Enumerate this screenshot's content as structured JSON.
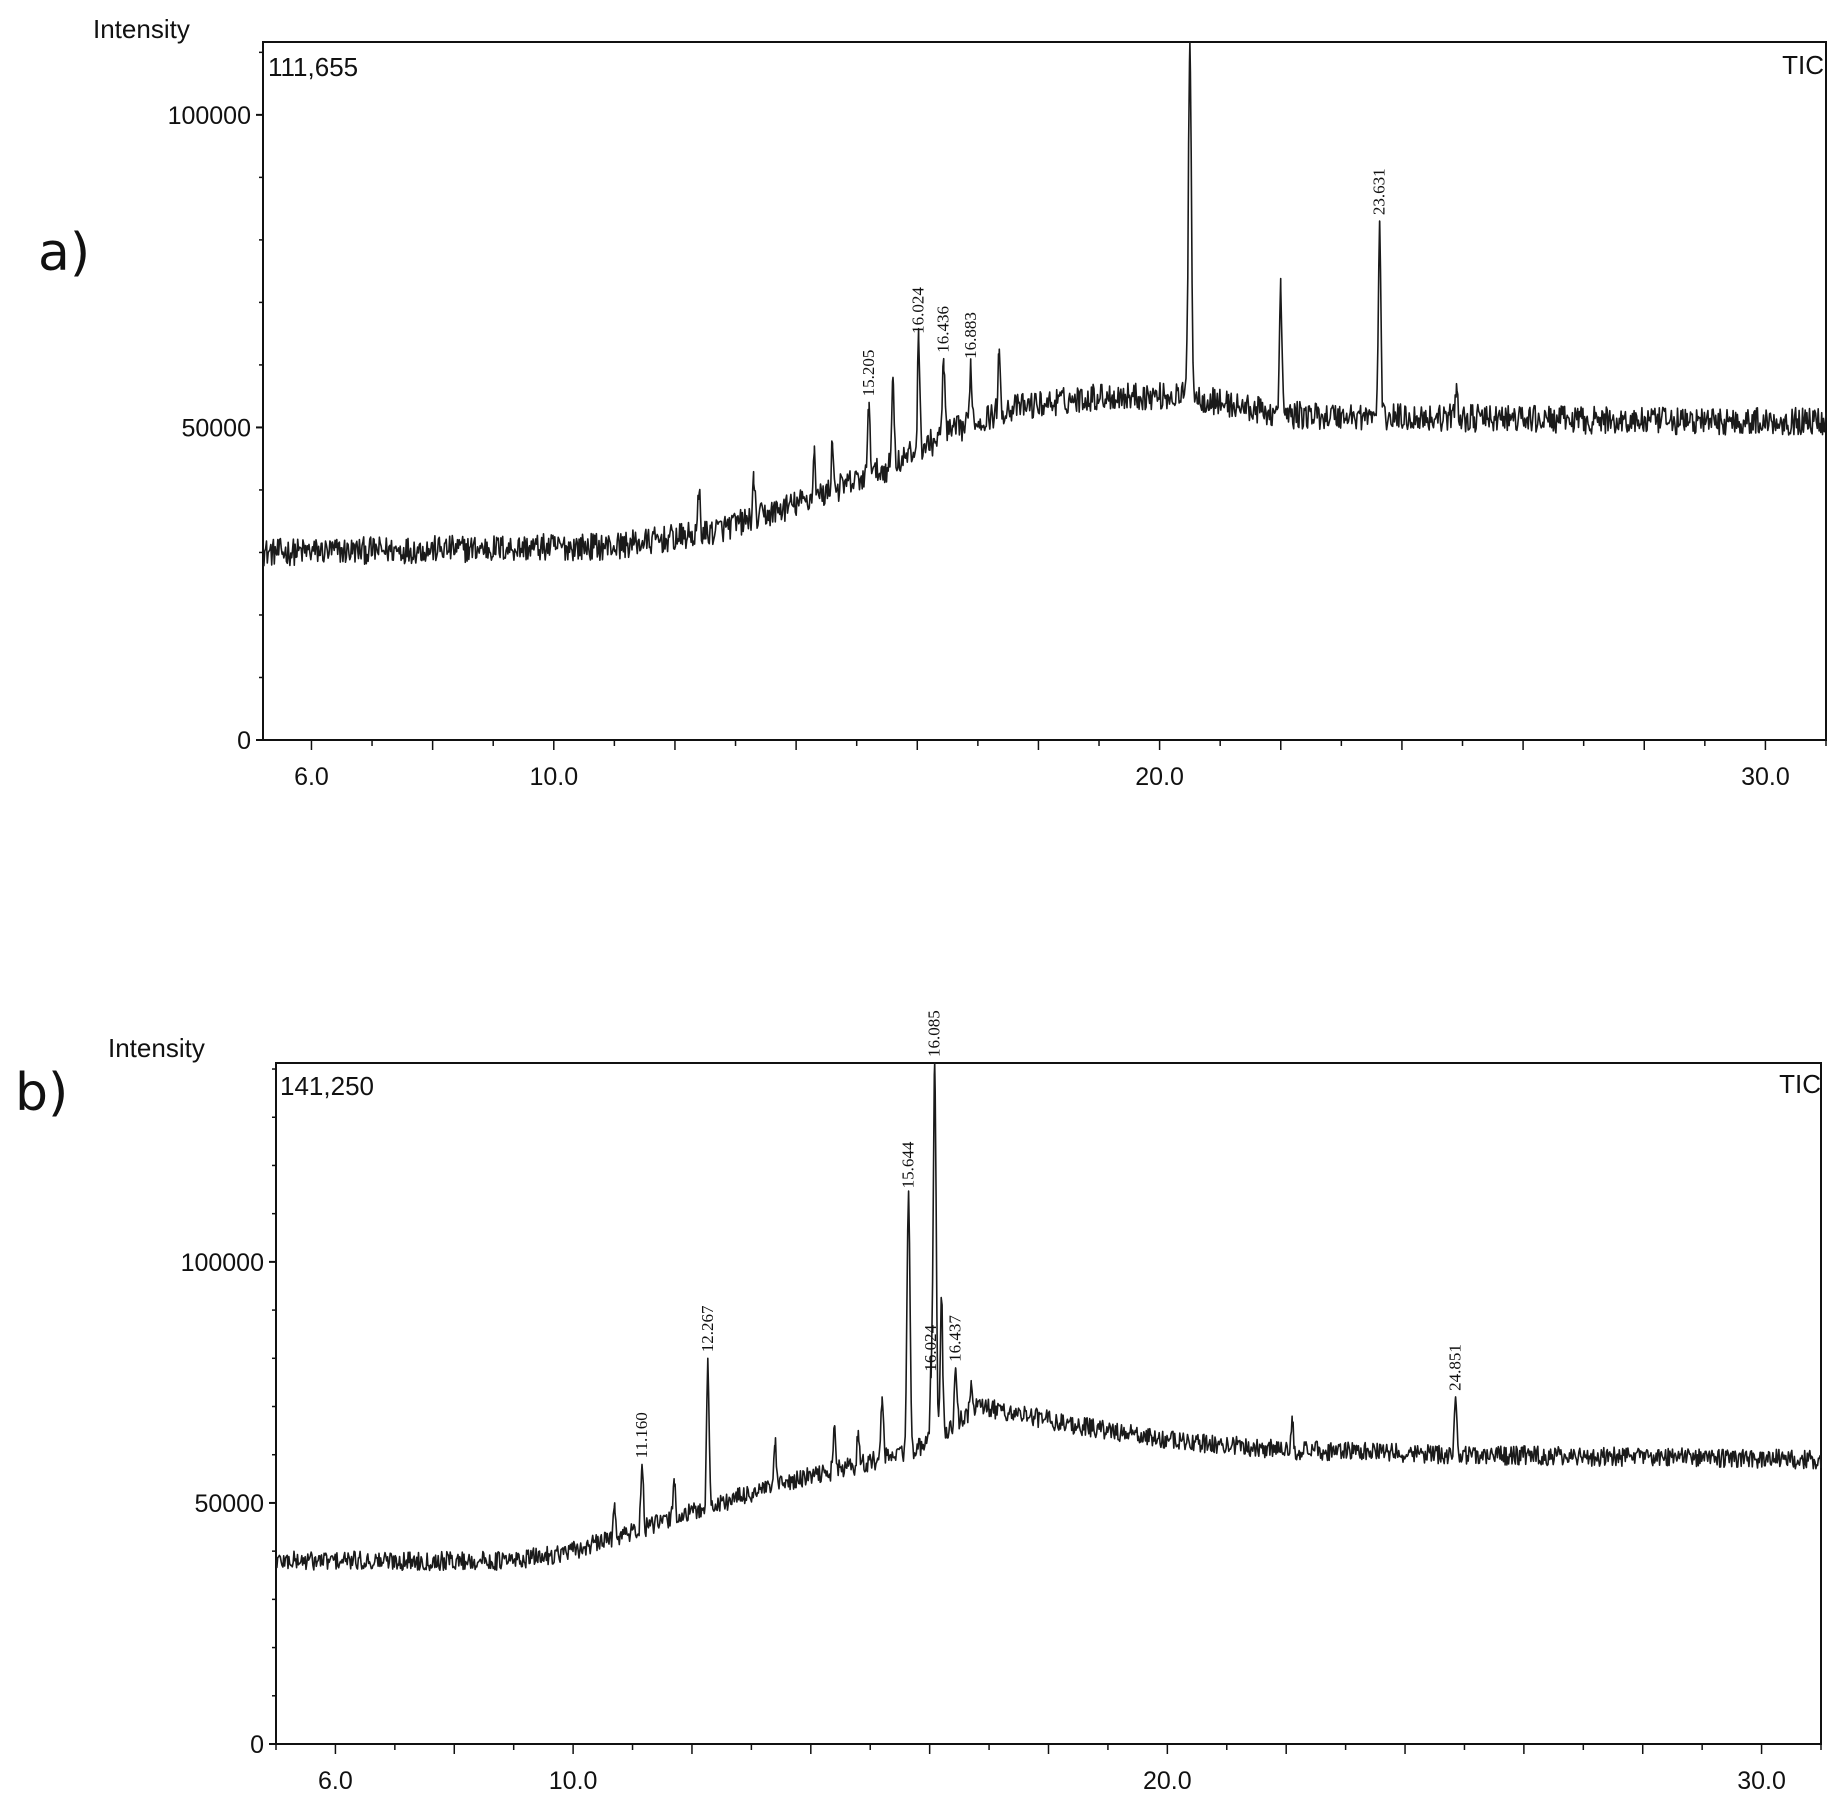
{
  "panels": [
    {
      "id": "a",
      "panel_letter": "a)",
      "corner_left": "111,655",
      "corner_right": "TIC",
      "ylabel": "Intensity"
    },
    {
      "id": "b",
      "panel_letter": "b)",
      "corner_left": "141,250",
      "corner_right": "TIC",
      "ylabel": "Intensity"
    }
  ],
  "chart_data": [
    {
      "type": "line",
      "ylabel": "Intensity",
      "xlabel": "",
      "xlim": [
        5.2,
        31.0
      ],
      "ylim": [
        0,
        111655
      ],
      "x_ticks": [
        "6.0",
        "10.0",
        "20.0",
        "30.0"
      ],
      "y_ticks": [
        "0",
        "50000",
        "100000"
      ],
      "max_intensity": "111,655",
      "trace_label": "TIC",
      "baseline": [
        [
          5.2,
          30000
        ],
        [
          8.0,
          30500
        ],
        [
          11.0,
          31000
        ],
        [
          12.5,
          33000
        ],
        [
          13.5,
          36000
        ],
        [
          14.5,
          39500
        ],
        [
          15.5,
          43500
        ],
        [
          16.5,
          49000
        ],
        [
          17.5,
          53000
        ],
        [
          19.0,
          55000
        ],
        [
          20.5,
          55000
        ],
        [
          22.0,
          52000
        ],
        [
          25.0,
          51500
        ],
        [
          28.0,
          51000
        ],
        [
          31.0,
          51000
        ]
      ],
      "noise_amplitude": 2200,
      "peaks": [
        {
          "x": 12.4,
          "y": 39500,
          "label": ""
        },
        {
          "x": 13.3,
          "y": 41000,
          "label": ""
        },
        {
          "x": 14.3,
          "y": 46000,
          "label": ""
        },
        {
          "x": 14.6,
          "y": 47500,
          "label": ""
        },
        {
          "x": 15.205,
          "y": 54000,
          "label": "15.205"
        },
        {
          "x": 15.6,
          "y": 58000,
          "label": ""
        },
        {
          "x": 16.024,
          "y": 64000,
          "label": "16.024"
        },
        {
          "x": 16.436,
          "y": 61000,
          "label": "16.436"
        },
        {
          "x": 16.883,
          "y": 60000,
          "label": "16.883"
        },
        {
          "x": 17.35,
          "y": 61000,
          "label": ""
        },
        {
          "x": 20.5,
          "y": 111655,
          "label": ""
        },
        {
          "x": 22.0,
          "y": 72000,
          "label": ""
        },
        {
          "x": 23.631,
          "y": 83000,
          "label": "23.631"
        },
        {
          "x": 24.9,
          "y": 57000,
          "label": ""
        }
      ]
    },
    {
      "type": "line",
      "ylabel": "Intensity",
      "xlabel": "",
      "xlim": [
        5.0,
        31.0
      ],
      "ylim": [
        0,
        141250
      ],
      "x_ticks": [
        "6.0",
        "10.0",
        "20.0",
        "30.0"
      ],
      "y_ticks": [
        "0",
        "50000",
        "100000"
      ],
      "max_intensity": "141,250",
      "trace_label": "TIC",
      "baseline": [
        [
          5.0,
          38000
        ],
        [
          9.0,
          38000
        ],
        [
          10.0,
          40000
        ],
        [
          11.0,
          44000
        ],
        [
          12.0,
          48000
        ],
        [
          13.0,
          52000
        ],
        [
          14.0,
          55500
        ],
        [
          15.0,
          58500
        ],
        [
          16.0,
          62000
        ],
        [
          16.8,
          70000
        ],
        [
          17.5,
          68500
        ],
        [
          18.5,
          66000
        ],
        [
          20.0,
          63000
        ],
        [
          22.0,
          61000
        ],
        [
          25.0,
          60000
        ],
        [
          28.0,
          59500
        ],
        [
          31.0,
          59000
        ]
      ],
      "noise_amplitude": 2000,
      "peaks": [
        {
          "x": 10.7,
          "y": 50000,
          "label": ""
        },
        {
          "x": 11.16,
          "y": 58000,
          "label": "11.160"
        },
        {
          "x": 11.7,
          "y": 55000,
          "label": ""
        },
        {
          "x": 12.267,
          "y": 80000,
          "label": "12.267"
        },
        {
          "x": 13.4,
          "y": 62000,
          "label": ""
        },
        {
          "x": 14.4,
          "y": 66000,
          "label": ""
        },
        {
          "x": 14.8,
          "y": 65000,
          "label": ""
        },
        {
          "x": 15.2,
          "y": 72000,
          "label": ""
        },
        {
          "x": 15.644,
          "y": 114000,
          "label": "15.644"
        },
        {
          "x": 16.024,
          "y": 76000,
          "label": "16.024"
        },
        {
          "x": 16.085,
          "y": 141250,
          "label": "16.085"
        },
        {
          "x": 16.2,
          "y": 92000,
          "label": ""
        },
        {
          "x": 16.437,
          "y": 78000,
          "label": "16.437"
        },
        {
          "x": 16.7,
          "y": 75000,
          "label": ""
        },
        {
          "x": 22.1,
          "y": 68000,
          "label": ""
        },
        {
          "x": 24.851,
          "y": 72000,
          "label": "24.851"
        }
      ]
    }
  ]
}
